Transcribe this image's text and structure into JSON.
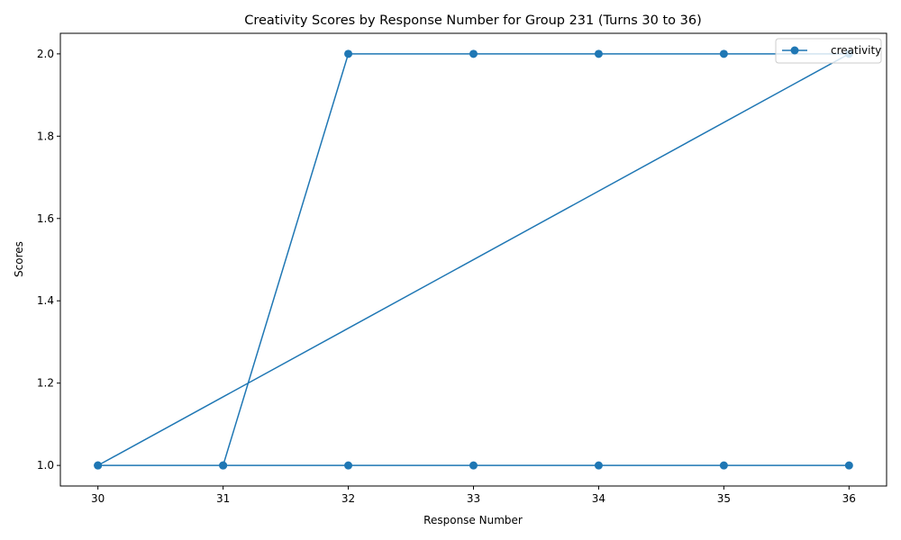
{
  "chart_data": {
    "type": "line",
    "title": "Creativity Scores by Response Number for Group 231 (Turns 30 to 36)",
    "xlabel": "Response Number",
    "ylabel": "Scores",
    "xlim": [
      29.7,
      36.3
    ],
    "ylim": [
      0.95,
      2.05
    ],
    "x_ticks": [
      30,
      31,
      32,
      33,
      34,
      35,
      36
    ],
    "y_ticks": [
      1.0,
      1.2,
      1.4,
      1.6,
      1.8,
      2.0
    ],
    "y_tick_labels": [
      "1.0",
      "1.2",
      "1.4",
      "1.6",
      "1.8",
      "2.0"
    ],
    "grid": false,
    "legend_position": "top-right",
    "series": [
      {
        "name": "creativity",
        "color": "#1f77b4",
        "marker": "circle",
        "points": [
          [
            30,
            1
          ],
          [
            31,
            1
          ],
          [
            32,
            2
          ],
          [
            33,
            2
          ],
          [
            34,
            2
          ],
          [
            35,
            2
          ],
          [
            36,
            2
          ],
          [
            30,
            1
          ],
          [
            31,
            1
          ],
          [
            32,
            1
          ],
          [
            33,
            1
          ],
          [
            34,
            1
          ],
          [
            35,
            1
          ],
          [
            36,
            1
          ]
        ]
      }
    ]
  }
}
